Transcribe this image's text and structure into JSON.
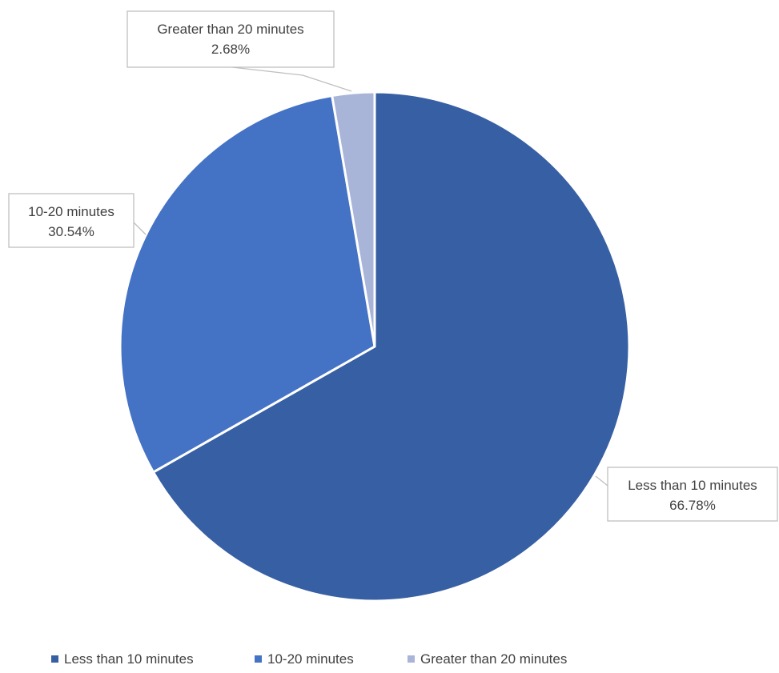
{
  "chart_data": {
    "type": "pie",
    "title": "",
    "slices": [
      {
        "label": "Less than 10 minutes",
        "value": 66.78,
        "value_label": "66.78%",
        "color": "#375fa3"
      },
      {
        "label": "10-20 minutes",
        "value": 30.54,
        "value_label": "30.54%",
        "color": "#4472c4"
      },
      {
        "label": "Greater than 20 minutes",
        "value": 2.68,
        "value_label": "2.68%",
        "color": "#a9b4d9"
      }
    ],
    "start_angle": "12 o'clock, clockwise",
    "legend_position": "bottom",
    "data_labels": "callouts with category name and percentage"
  }
}
